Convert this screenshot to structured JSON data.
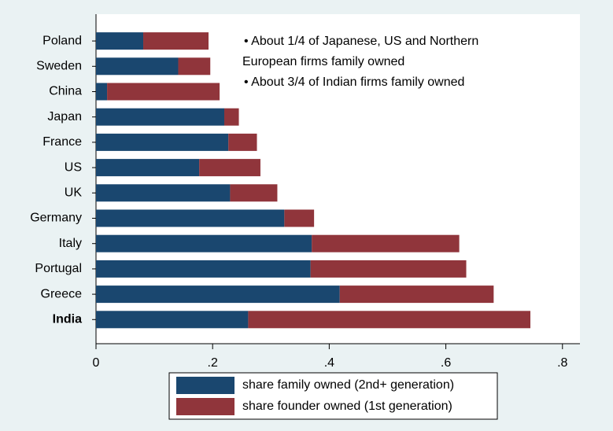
{
  "chart_data": {
    "type": "stacked_barh",
    "categories": [
      "Poland",
      "Sweden",
      "China",
      "Japan",
      "France",
      "US",
      "UK",
      "Germany",
      "Italy",
      "Portugal",
      "Greece",
      "India"
    ],
    "bold_category": "India",
    "series": [
      {
        "name": "share family owned (2nd+ generation)",
        "color": "#1a476f",
        "values": [
          0.081,
          0.141,
          0.019,
          0.22,
          0.227,
          0.177,
          0.23,
          0.323,
          0.37,
          0.368,
          0.418,
          0.261
        ]
      },
      {
        "name": "share founder owned (1st generation)",
        "color": "#90353b",
        "values": [
          0.112,
          0.055,
          0.193,
          0.025,
          0.049,
          0.105,
          0.081,
          0.051,
          0.253,
          0.267,
          0.264,
          0.484
        ]
      }
    ],
    "annotations": [
      "• About 1/4 of Japanese, US and Northern",
      "European firms family owned",
      "• About 3/4 of Indian firms family owned"
    ],
    "xlim": [
      0,
      0.83
    ],
    "xticks": [
      0,
      {
        "value": 0.2,
        "label": ".2"
      },
      {
        "value": 0.4,
        "label": ".4"
      },
      {
        "value": 0.6,
        "label": ".6"
      },
      {
        "value": 0.8,
        "label": ".8"
      }
    ]
  }
}
